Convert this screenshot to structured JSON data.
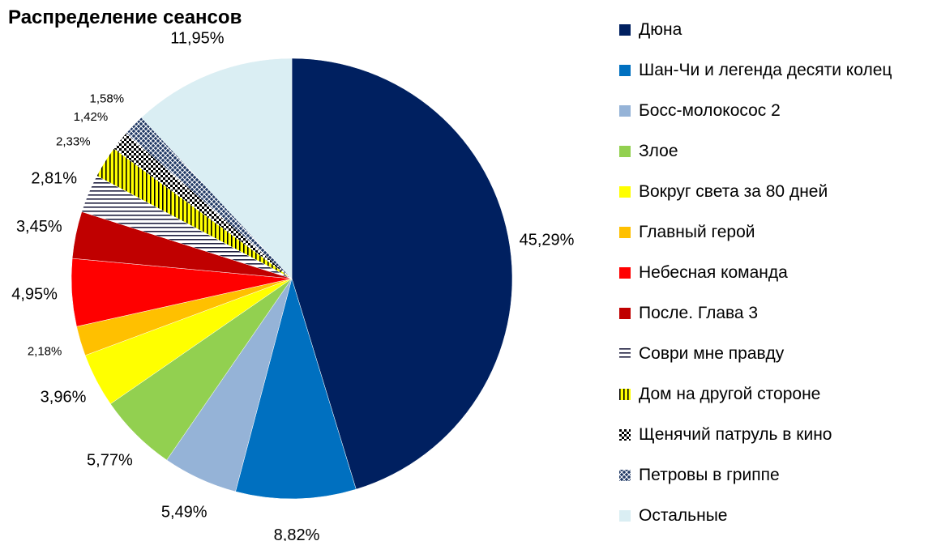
{
  "chart_data": {
    "type": "pie",
    "title": "Распределение сеансов",
    "legend_position": "right",
    "slices": [
      {
        "label": "Дюна",
        "value": 45.29,
        "value_label": "45,29%",
        "color": "#002060",
        "pattern": "solid"
      },
      {
        "label": "Шан-Чи и легенда десяти колец",
        "value": 8.82,
        "value_label": "8,82%",
        "color": "#0070C0",
        "pattern": "solid"
      },
      {
        "label": "Босс-молокосос 2",
        "value": 5.49,
        "value_label": "5,49%",
        "color": "#95B3D7",
        "pattern": "solid"
      },
      {
        "label": "Злое",
        "value": 5.77,
        "value_label": "5,77%",
        "color": "#92D050",
        "pattern": "solid"
      },
      {
        "label": "Вокруг света за 80 дней",
        "value": 3.96,
        "value_label": "3,96%",
        "color": "#FFFF00",
        "pattern": "solid"
      },
      {
        "label": "Главный герой",
        "value": 2.18,
        "value_label": "2,18%",
        "color": "#FFC000",
        "pattern": "solid"
      },
      {
        "label": "Небесная команда",
        "value": 4.95,
        "value_label": "4,95%",
        "color": "#FF0000",
        "pattern": "solid"
      },
      {
        "label": "После. Глава 3",
        "value": 3.45,
        "value_label": "3,45%",
        "color": "#C00000",
        "pattern": "solid"
      },
      {
        "label": "Соври мне правду",
        "value": 2.81,
        "value_label": "2,81%",
        "color": "#1F1F3F",
        "pattern": "hstripes"
      },
      {
        "label": "Дом на другой стороне",
        "value": 2.33,
        "value_label": "2,33%",
        "color": "#FFFF00",
        "pattern": "vstripes"
      },
      {
        "label": "Щенячий патруль в кино",
        "value": 1.42,
        "value_label": "1,42%",
        "color": "#000000",
        "pattern": "checker"
      },
      {
        "label": "Петровы в гриппе",
        "value": 1.58,
        "value_label": "1,58%",
        "color": "#1F3864",
        "pattern": "diamond"
      },
      {
        "label": "Остальные",
        "value": 11.95,
        "value_label": "11,95%",
        "color": "#DAEEF3",
        "pattern": "solid"
      }
    ]
  }
}
